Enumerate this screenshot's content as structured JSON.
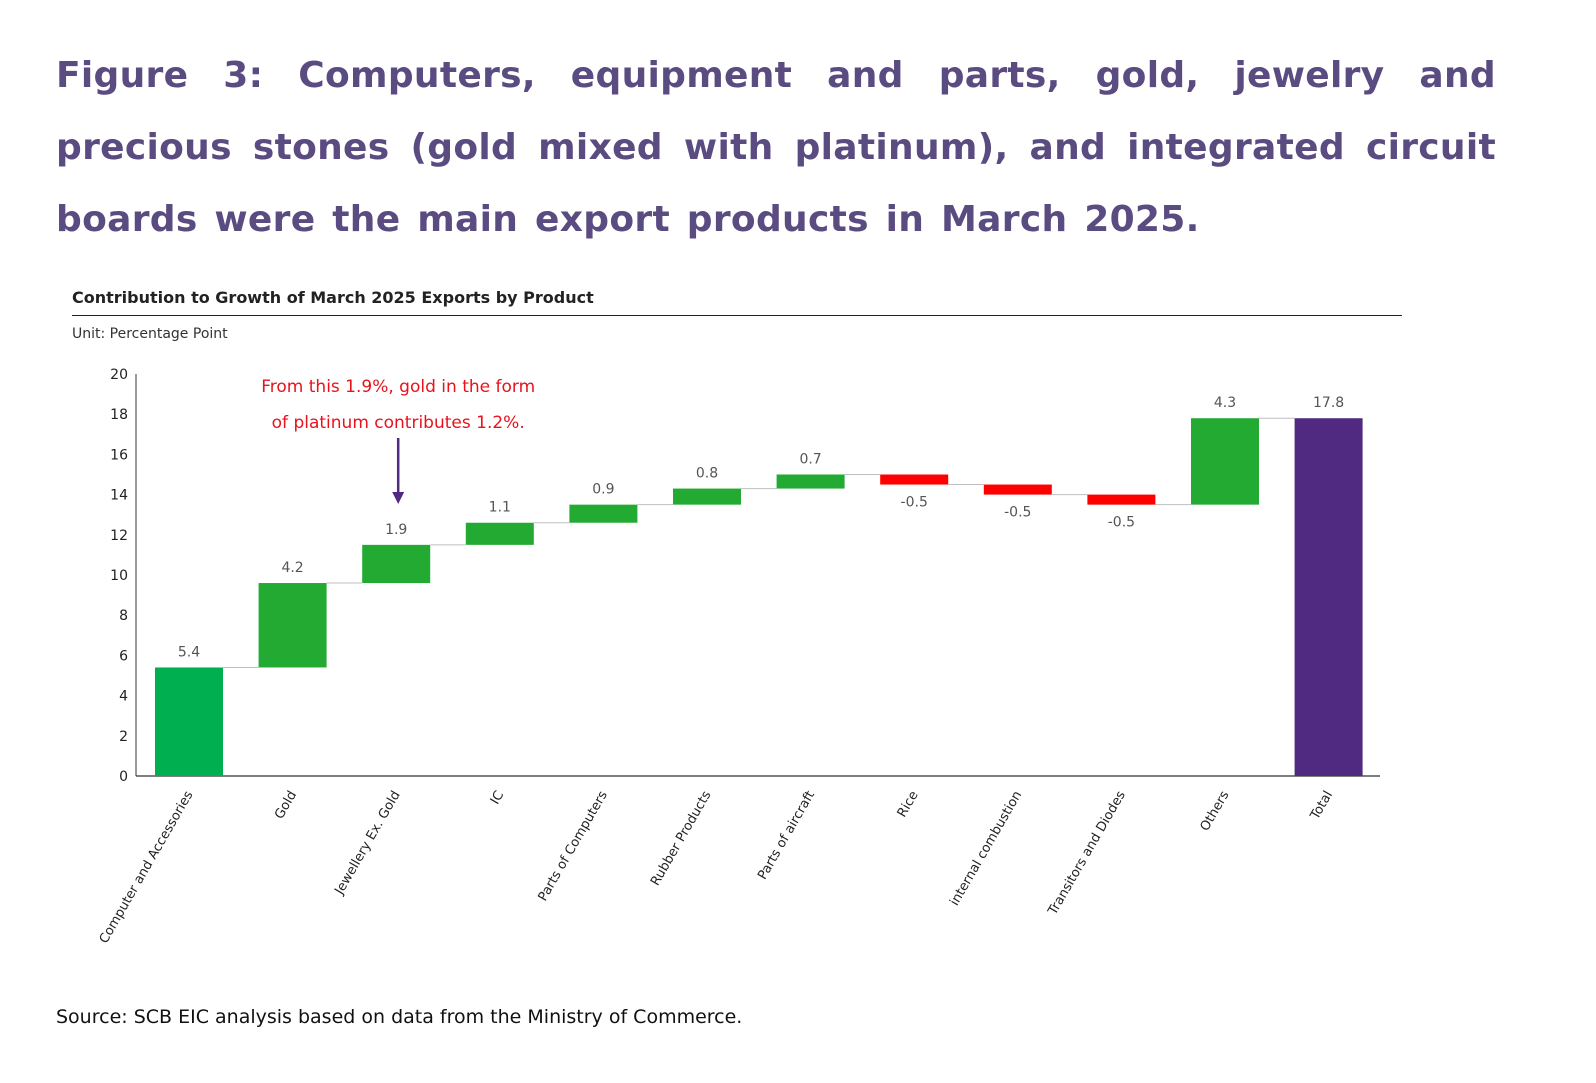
{
  "figure": {
    "title": "Figure 3: Computers, equipment and parts, gold, jewelry and precious stones (gold mixed with platinum), and integrated circuit boards were the main export products in March 2025.",
    "source": "Source: SCB EIC analysis based on data from the Ministry of Commerce."
  },
  "chart_data": {
    "type": "waterfall",
    "title": "Contribution to Growth of March 2025 Exports by Product",
    "unit": "Unit: Percentage Point",
    "categories": [
      "Computer and Accessories",
      "Gold",
      "Jewellery Ex. Gold",
      "IC",
      "Parts of Computers",
      "Rubber Products",
      "Parts of aircraft",
      "Rice",
      "internal combustion",
      "Transitors and Diodes",
      "Others",
      "Total"
    ],
    "values": [
      5.4,
      4.2,
      1.9,
      1.1,
      0.9,
      0.8,
      0.7,
      -0.5,
      -0.5,
      -0.5,
      4.3,
      17.8
    ],
    "value_labels": [
      "5.4",
      "4.2",
      "1.9",
      "1.1",
      "0.9",
      "0.8",
      "0.7",
      "-0.5",
      "-0.5",
      "-0.5",
      "4.3",
      "17.8"
    ],
    "is_total": [
      false,
      false,
      false,
      false,
      false,
      false,
      false,
      false,
      false,
      false,
      false,
      true
    ],
    "ylim": [
      0,
      20
    ],
    "yticks": [
      0,
      2,
      4,
      6,
      8,
      10,
      12,
      14,
      16,
      18,
      20
    ],
    "colors": {
      "increase_first": "#00b050",
      "increase": "#22aa33",
      "decrease": "#ff0000",
      "total": "#4f2a80",
      "connector": "#bfbfbf",
      "annotation": "#e8121c",
      "arrow": "#4f2a80"
    },
    "annotation": {
      "line1": "From this 1.9%, gold in the form",
      "line2": "of platinum contributes 1.2%.",
      "target_category": "Jewellery Ex. Gold"
    }
  }
}
